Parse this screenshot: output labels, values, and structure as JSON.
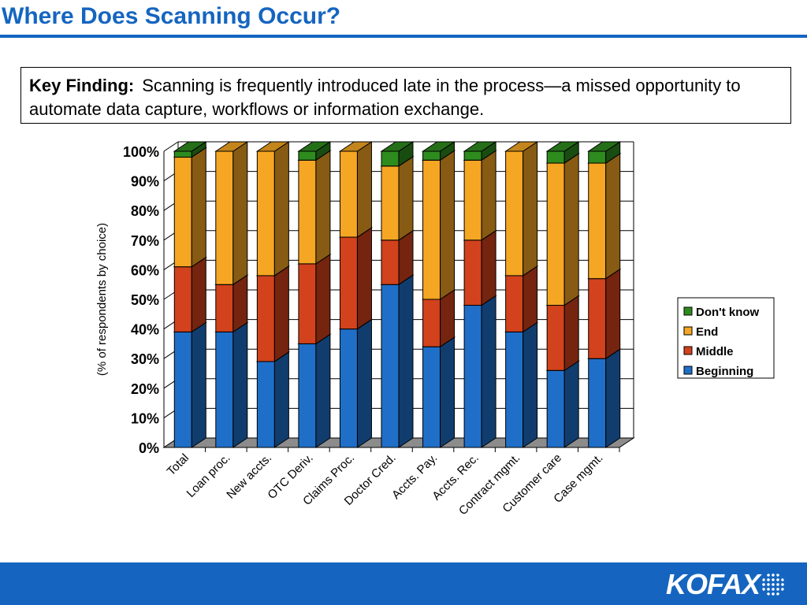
{
  "title": "Where Does Scanning Occur?",
  "key_finding": {
    "label": "Key Finding:",
    "text": "Scanning is frequently introduced late in the process—a missed opportunity to automate data capture, workflows or information exchange."
  },
  "brand": {
    "name": "KOFAX",
    "accent": "#1565c0"
  },
  "colors": {
    "beginning": "#1f6fc8",
    "middle": "#d2421c",
    "end": "#f5a623",
    "dont_know": "#2e8b1e",
    "floor": "#8c8c8c"
  },
  "chart_data": {
    "type": "bar",
    "stacked": true,
    "ylabel": "(% of respondents by choice)",
    "ylim": [
      0,
      100
    ],
    "yticks": [
      "0%",
      "10%",
      "20%",
      "30%",
      "40%",
      "50%",
      "60%",
      "70%",
      "80%",
      "90%",
      "100%"
    ],
    "categories": [
      "Total",
      "Loan proc.",
      "New accts.",
      "OTC Deriv.",
      "Claims Proc.",
      "Doctor Cred.",
      "Accts. Pay.",
      "Accts. Rec.",
      "Contract mgmt.",
      "Customer care",
      "Case mgmt."
    ],
    "series": [
      {
        "name": "Beginning",
        "color": "#1f6fc8",
        "values": [
          39,
          39,
          29,
          35,
          40,
          55,
          34,
          48,
          39,
          26,
          30
        ]
      },
      {
        "name": "Middle",
        "color": "#d2421c",
        "values": [
          22,
          16,
          29,
          27,
          31,
          15,
          16,
          22,
          19,
          22,
          27
        ]
      },
      {
        "name": "End",
        "color": "#f5a623",
        "values": [
          37,
          45,
          42,
          35,
          29,
          25,
          47,
          27,
          42,
          48,
          39
        ]
      },
      {
        "name": "Don't know",
        "color": "#2e8b1e",
        "values": [
          2,
          0,
          0,
          3,
          0,
          5,
          3,
          3,
          0,
          4,
          4
        ]
      }
    ],
    "legend_order": [
      "Don't know",
      "End",
      "Middle",
      "Beginning"
    ],
    "legend_position": "right",
    "grid": true
  }
}
